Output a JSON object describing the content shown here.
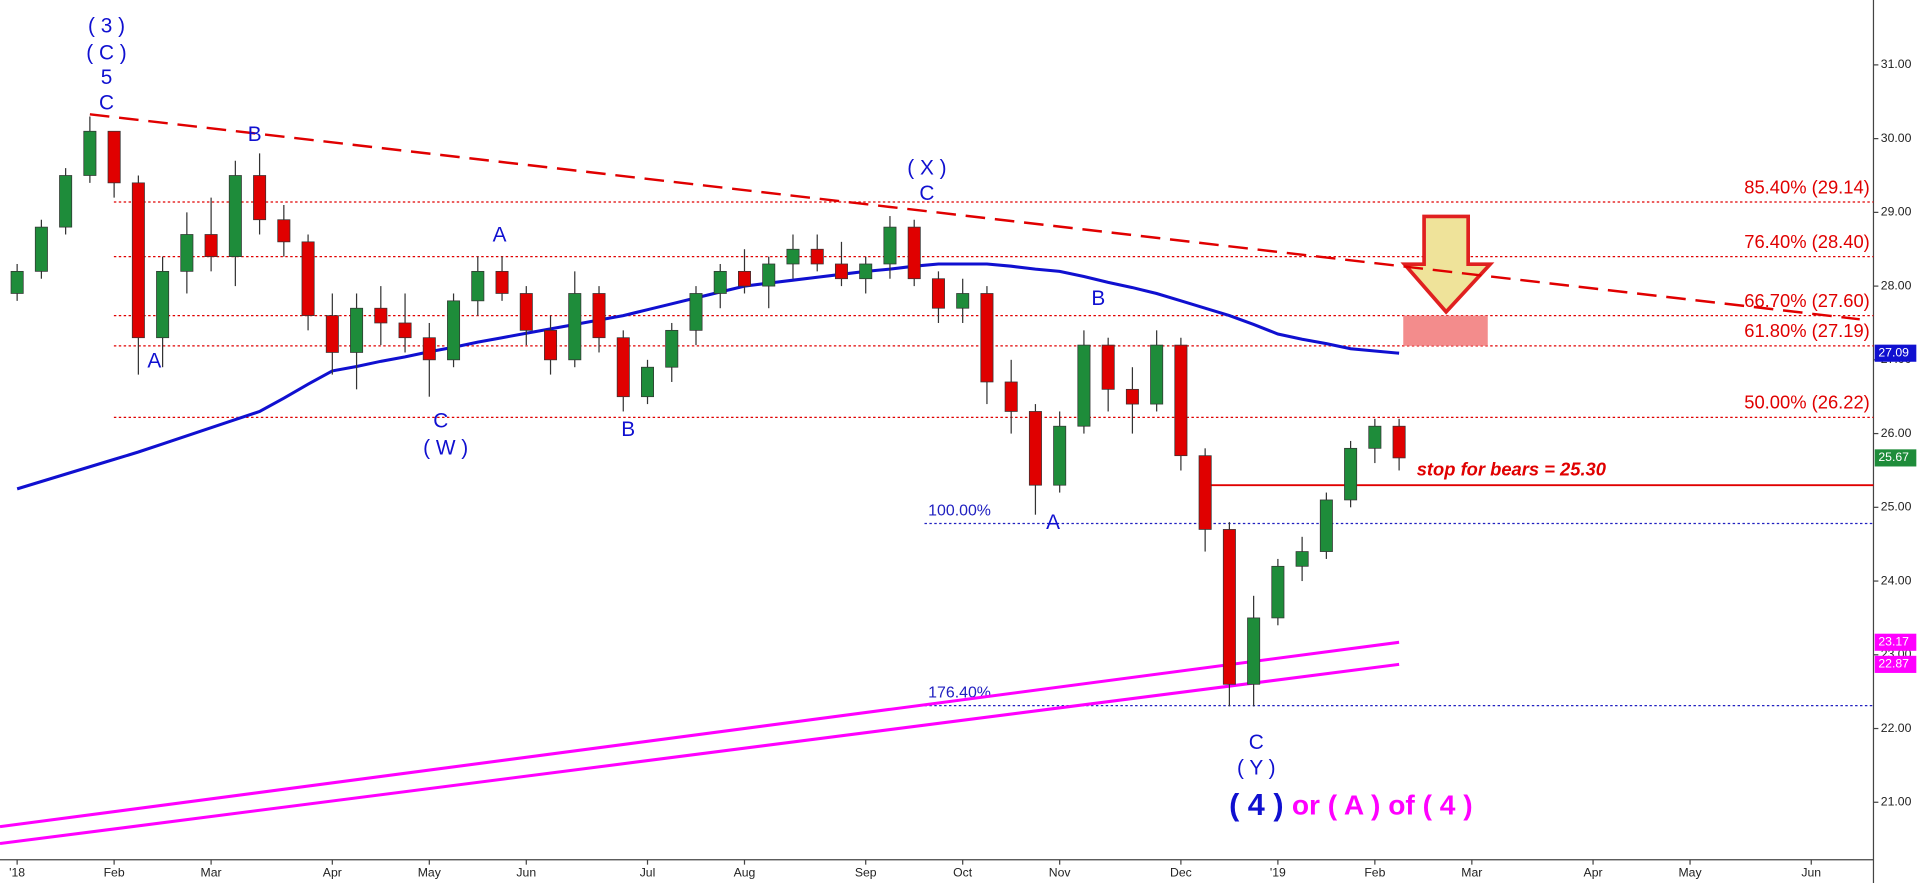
{
  "chart_data": {
    "type": "candlestick",
    "categories": [
      "'18",
      null,
      null,
      null,
      "Feb",
      null,
      null,
      null,
      "Mar",
      null,
      null,
      null,
      null,
      "Apr",
      null,
      null,
      null,
      "May",
      null,
      null,
      null,
      "Jun",
      null,
      null,
      null,
      null,
      "Jul",
      null,
      null,
      null,
      "Aug",
      null,
      null,
      null,
      null,
      "Sep",
      null,
      null,
      null,
      "Oct",
      null,
      null,
      null,
      "Nov",
      null,
      null,
      null,
      null,
      "Dec",
      null,
      null,
      null,
      "'19",
      null,
      null,
      null,
      "Feb",
      null,
      null,
      null,
      "Mar",
      null,
      null,
      null,
      null,
      "Apr",
      null,
      null,
      null,
      "May",
      null,
      null,
      null,
      null,
      "Jun",
      null,
      null
    ],
    "open": [
      27.9,
      28.2,
      28.8,
      29.5,
      30.1,
      29.4,
      27.3,
      28.2,
      28.7,
      28.4,
      29.5,
      28.9,
      28.6,
      27.6,
      27.1,
      27.7,
      27.5,
      27.3,
      27.0,
      27.8,
      28.2,
      27.9,
      27.4,
      27.0,
      27.9,
      27.3,
      26.5,
      26.9,
      27.4,
      27.9,
      28.2,
      28.0,
      28.3,
      28.5,
      28.3,
      28.1,
      28.3,
      28.8,
      28.1,
      27.7,
      27.9,
      26.7,
      26.3,
      25.3,
      26.1,
      27.2,
      26.6,
      26.4,
      27.2,
      25.7,
      24.7,
      22.6,
      23.5,
      24.2,
      24.4,
      25.1,
      25.8,
      26.1,
      null,
      null,
      null,
      null,
      null,
      null,
      null,
      null,
      null,
      null,
      null,
      null,
      null,
      null,
      null,
      null,
      null,
      null,
      null
    ],
    "high": [
      28.3,
      28.9,
      29.6,
      30.3,
      30.1,
      29.5,
      28.4,
      29.0,
      29.2,
      29.7,
      29.8,
      29.1,
      28.7,
      27.9,
      27.9,
      28.0,
      27.9,
      27.5,
      27.9,
      28.4,
      28.4,
      28.0,
      27.6,
      28.2,
      28.0,
      27.4,
      27.0,
      27.5,
      28.0,
      28.3,
      28.5,
      28.4,
      28.7,
      28.7,
      28.6,
      28.4,
      28.95,
      28.9,
      28.2,
      28.1,
      28.0,
      27.0,
      26.4,
      26.3,
      27.4,
      27.3,
      26.9,
      27.4,
      27.3,
      25.8,
      24.8,
      23.8,
      24.3,
      24.6,
      25.2,
      25.9,
      26.2,
      26.2,
      null,
      null,
      null,
      null,
      null,
      null,
      null,
      null,
      null,
      null,
      null,
      null,
      null,
      null,
      null,
      null,
      null,
      null,
      null
    ],
    "low": [
      27.8,
      28.1,
      28.7,
      29.4,
      29.2,
      26.8,
      26.9,
      27.9,
      28.2,
      28.0,
      28.7,
      28.4,
      27.4,
      26.8,
      26.6,
      27.2,
      27.1,
      26.5,
      26.9,
      27.6,
      27.8,
      27.2,
      26.8,
      26.9,
      27.1,
      26.3,
      26.4,
      26.7,
      27.2,
      27.7,
      27.9,
      27.7,
      28.1,
      28.2,
      28.0,
      27.9,
      28.1,
      28.0,
      27.5,
      27.5,
      26.4,
      26.0,
      24.9,
      25.2,
      26.0,
      26.3,
      26.0,
      26.3,
      25.5,
      24.4,
      22.3,
      22.3,
      23.4,
      24.0,
      24.3,
      25.0,
      25.6,
      25.5,
      null,
      null,
      null,
      null,
      null,
      null,
      null,
      null,
      null,
      null,
      null,
      null,
      null,
      null,
      null,
      null,
      null,
      null,
      null
    ],
    "close": [
      28.2,
      28.8,
      29.5,
      30.1,
      29.4,
      27.3,
      28.2,
      28.7,
      28.4,
      29.5,
      28.9,
      28.6,
      27.6,
      27.1,
      27.7,
      27.5,
      27.3,
      27.0,
      27.8,
      28.2,
      27.9,
      27.4,
      27.0,
      27.9,
      27.3,
      26.5,
      26.9,
      27.4,
      27.9,
      28.2,
      28.0,
      28.3,
      28.5,
      28.3,
      28.1,
      28.3,
      28.8,
      28.1,
      27.7,
      27.9,
      26.7,
      26.3,
      25.3,
      26.1,
      27.2,
      26.6,
      26.4,
      27.2,
      25.7,
      24.7,
      22.6,
      23.5,
      24.2,
      24.4,
      25.1,
      25.8,
      26.1,
      25.67,
      null,
      null,
      null,
      null,
      null,
      null,
      null,
      null,
      null,
      null,
      null,
      null,
      null,
      null,
      null,
      null,
      null,
      null,
      null
    ],
    "up_color": "#1e8c3a",
    "down_color": "#e00000",
    "ma": {
      "color": "#1010d0",
      "values": [
        25.25,
        25.35,
        25.45,
        25.55,
        25.65,
        25.75,
        25.86,
        25.97,
        26.08,
        26.19,
        26.3,
        26.48,
        26.67,
        26.85,
        26.91,
        26.98,
        27.04,
        27.11,
        27.17,
        27.24,
        27.3,
        27.36,
        27.42,
        27.48,
        27.54,
        27.6,
        27.68,
        27.76,
        27.84,
        27.92,
        28.0,
        28.04,
        28.08,
        28.12,
        28.16,
        28.2,
        28.23,
        28.27,
        28.3,
        28.3,
        28.3,
        28.27,
        28.23,
        28.2,
        28.13,
        28.05,
        27.98,
        27.9,
        27.8,
        27.7,
        27.6,
        27.48,
        27.35,
        27.28,
        27.22,
        27.15,
        27.12,
        27.09,
        null,
        null,
        null,
        null,
        null,
        null,
        null,
        null,
        null,
        null,
        null,
        null,
        null,
        null,
        null,
        null,
        null,
        null,
        null
      ]
    },
    "trendlines": [
      {
        "color": "#ff00ff",
        "values": [
          20.7,
          23.17
        ]
      },
      {
        "color": "#ff00ff",
        "values": [
          20.47,
          22.87
        ]
      }
    ],
    "resistance": {
      "color": "#e00000",
      "values": [
        30.33,
        27.55
      ]
    },
    "fibs": [
      {
        "label": "85.40% (29.14)",
        "value": 29.14,
        "color": "#e00000"
      },
      {
        "label": "76.40% (28.40)",
        "value": 28.4,
        "color": "#e00000"
      },
      {
        "label": "66.70% (27.60)",
        "value": 27.6,
        "color": "#e00000"
      },
      {
        "label": "61.80% (27.19)",
        "value": 27.19,
        "color": "#e00000"
      },
      {
        "label": "50.00% (26.22)",
        "value": 26.22,
        "color": "#e00000"
      },
      {
        "label": "100.00%",
        "value": 24.78,
        "color": "#2020c0"
      },
      {
        "label": "176.40%",
        "value": 22.31,
        "color": "#2020c0"
      }
    ],
    "stop": {
      "label": "stop for bears = 25.30",
      "value": 25.3,
      "color": "#e00000"
    },
    "annotations": [
      {
        "text": "( 3 )",
        "color": "#1010d0"
      },
      {
        "text": "( C )",
        "color": "#1010d0"
      },
      {
        "text": "5",
        "color": "#1010d0"
      },
      {
        "text": "C",
        "color": "#1010d0"
      },
      {
        "text": "A",
        "color": "#1010d0"
      },
      {
        "text": "B",
        "color": "#1010d0"
      },
      {
        "text": "C",
        "color": "#1010d0"
      },
      {
        "text": "( W )",
        "color": "#1010d0"
      },
      {
        "text": "A",
        "color": "#1010d0"
      },
      {
        "text": "B",
        "color": "#1010d0"
      },
      {
        "text": "( X )",
        "color": "#1010d0"
      },
      {
        "text": "C",
        "color": "#1010d0"
      },
      {
        "text": "A",
        "color": "#1010d0"
      },
      {
        "text": "B",
        "color": "#1010d0"
      },
      {
        "text": "C",
        "color": "#1010d0"
      },
      {
        "text": "( Y )",
        "color": "#1010d0"
      },
      {
        "text": "( 4 )",
        "color": "#1010d0"
      },
      {
        "text": "or ( A ) of ( 4 )",
        "color": "#ff00ff"
      }
    ],
    "ylim": [
      20.27,
      31.88
    ],
    "yticks": [
      {
        "value": 21,
        "label": "21.00"
      },
      {
        "value": 22,
        "label": "22.00"
      },
      {
        "value": 23,
        "label": "23.00"
      },
      {
        "value": 24,
        "label": "24.00"
      },
      {
        "value": 25,
        "label": "25.00"
      },
      {
        "value": 26,
        "label": "26.00"
      },
      {
        "value": 27,
        "label": "27.00"
      },
      {
        "value": 28,
        "label": "28.00"
      },
      {
        "value": 29,
        "label": "29.00"
      },
      {
        "value": 30,
        "label": "30.00"
      },
      {
        "value": 31,
        "label": "31.00"
      }
    ]
  }
}
